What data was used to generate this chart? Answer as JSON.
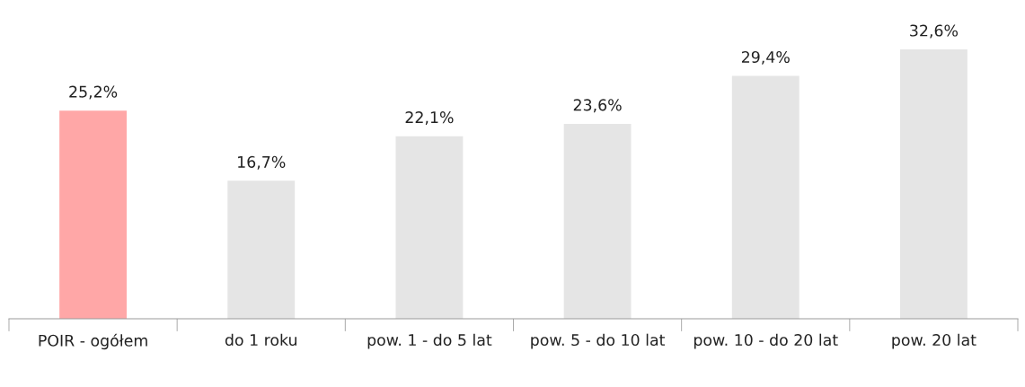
{
  "chart_data": {
    "type": "bar",
    "categories": [
      "POIR - ogółem",
      "do 1 roku",
      "pow. 1 - do 5 lat",
      "pow. 5 - do 10 lat",
      "pow. 10 - do 20 lat",
      "pow. 20 lat"
    ],
    "values": [
      25.2,
      16.7,
      22.1,
      23.6,
      29.4,
      32.6
    ],
    "colors": [
      "#ffa7a7",
      "#e5e5e5",
      "#e5e5e5",
      "#e5e5e5",
      "#e5e5e5",
      "#e5e5e5"
    ],
    "value_labels": [
      "25,2%",
      "16,7%",
      "22,1%",
      "23,6%",
      "29,4%",
      "32,6%"
    ],
    "grid": false,
    "legend": false
  }
}
